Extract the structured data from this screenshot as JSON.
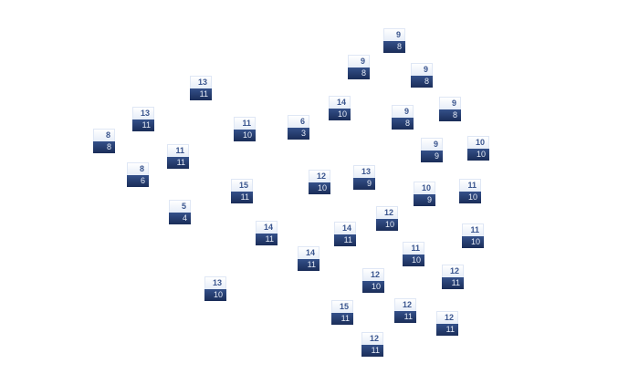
{
  "colors": {
    "tile_top": "#eef3fb",
    "tile_bottom": "#243d6e",
    "top_text": "#3a558e",
    "bottom_text": "#e6ecf7"
  },
  "tiles": [
    {
      "top": 9,
      "bottom": 8
    },
    {
      "top": 9,
      "bottom": 8
    },
    {
      "top": 9,
      "bottom": 8
    },
    {
      "top": 13,
      "bottom": 11
    },
    {
      "top": 14,
      "bottom": 10
    },
    {
      "top": 9,
      "bottom": 8
    },
    {
      "top": 13,
      "bottom": 11
    },
    {
      "top": 9,
      "bottom": 8
    },
    {
      "top": 6,
      "bottom": 3
    },
    {
      "top": 11,
      "bottom": 10
    },
    {
      "top": 8,
      "bottom": 8
    },
    {
      "top": 10,
      "bottom": 10
    },
    {
      "top": 9,
      "bottom": 9
    },
    {
      "top": 11,
      "bottom": 11
    },
    {
      "top": 8,
      "bottom": 6
    },
    {
      "top": 13,
      "bottom": 9
    },
    {
      "top": 12,
      "bottom": 10
    },
    {
      "top": 15,
      "bottom": 11
    },
    {
      "top": 11,
      "bottom": 10
    },
    {
      "top": 10,
      "bottom": 9
    },
    {
      "top": 5,
      "bottom": 4
    },
    {
      "top": 12,
      "bottom": 10
    },
    {
      "top": 14,
      "bottom": 11
    },
    {
      "top": 14,
      "bottom": 11
    },
    {
      "top": 11,
      "bottom": 10
    },
    {
      "top": 11,
      "bottom": 10
    },
    {
      "top": 14,
      "bottom": 11
    },
    {
      "top": 12,
      "bottom": 11
    },
    {
      "top": 12,
      "bottom": 10
    },
    {
      "top": 13,
      "bottom": 10
    },
    {
      "top": 12,
      "bottom": 11
    },
    {
      "top": 15,
      "bottom": 11
    },
    {
      "top": 12,
      "bottom": 11
    },
    {
      "top": 12,
      "bottom": 11
    }
  ]
}
